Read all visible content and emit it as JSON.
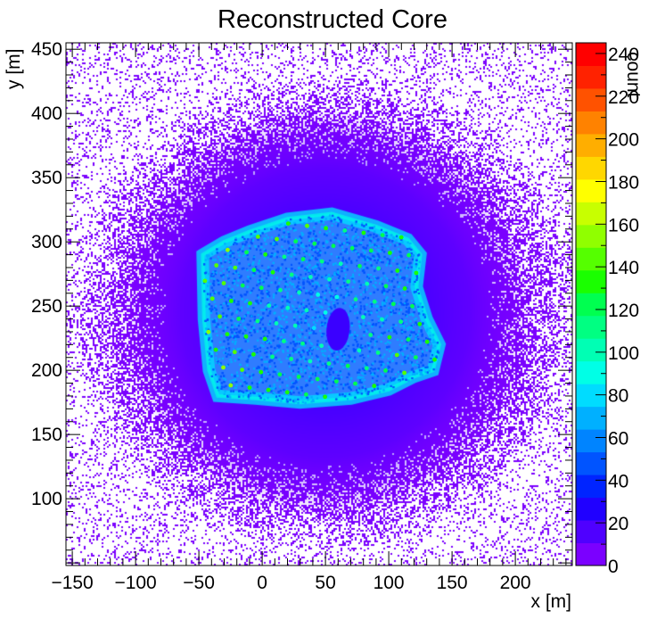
{
  "chart_data": {
    "type": "heatmap",
    "title": "Reconstructed Core",
    "xlabel": "x [m]",
    "ylabel": "y [m]",
    "zlabel": "count",
    "xlim": [
      -155,
      245
    ],
    "ylim": [
      48,
      455
    ],
    "zlim": [
      0,
      245
    ],
    "x_ticks": [
      -150,
      -100,
      -50,
      0,
      50,
      100,
      150,
      200
    ],
    "y_ticks": [
      100,
      150,
      200,
      250,
      300,
      350,
      400,
      450
    ],
    "z_ticks": [
      0,
      20,
      40,
      60,
      80,
      100,
      120,
      140,
      160,
      180,
      200,
      220,
      240
    ],
    "palette": [
      "#7b00ff",
      "#4f00ff",
      "#2000ff",
      "#0024ff",
      "#0054ff",
      "#0084ff",
      "#00b0ff",
      "#00dcff",
      "#00ffe6",
      "#00ffb4",
      "#00ff82",
      "#00ff50",
      "#1aff00",
      "#55ff00",
      "#90ff00",
      "#c8ff00",
      "#ffff00",
      "#ffd700",
      "#ffae00",
      "#ff8200",
      "#ff5200",
      "#ff2200",
      "#ff0000"
    ],
    "core_region": {
      "shape": "tilted hexagonal detector array with hole",
      "center": [
        50,
        245
      ],
      "hole_center": [
        60,
        232
      ],
      "grid_spacing": 15,
      "peak_count": 190
    }
  }
}
